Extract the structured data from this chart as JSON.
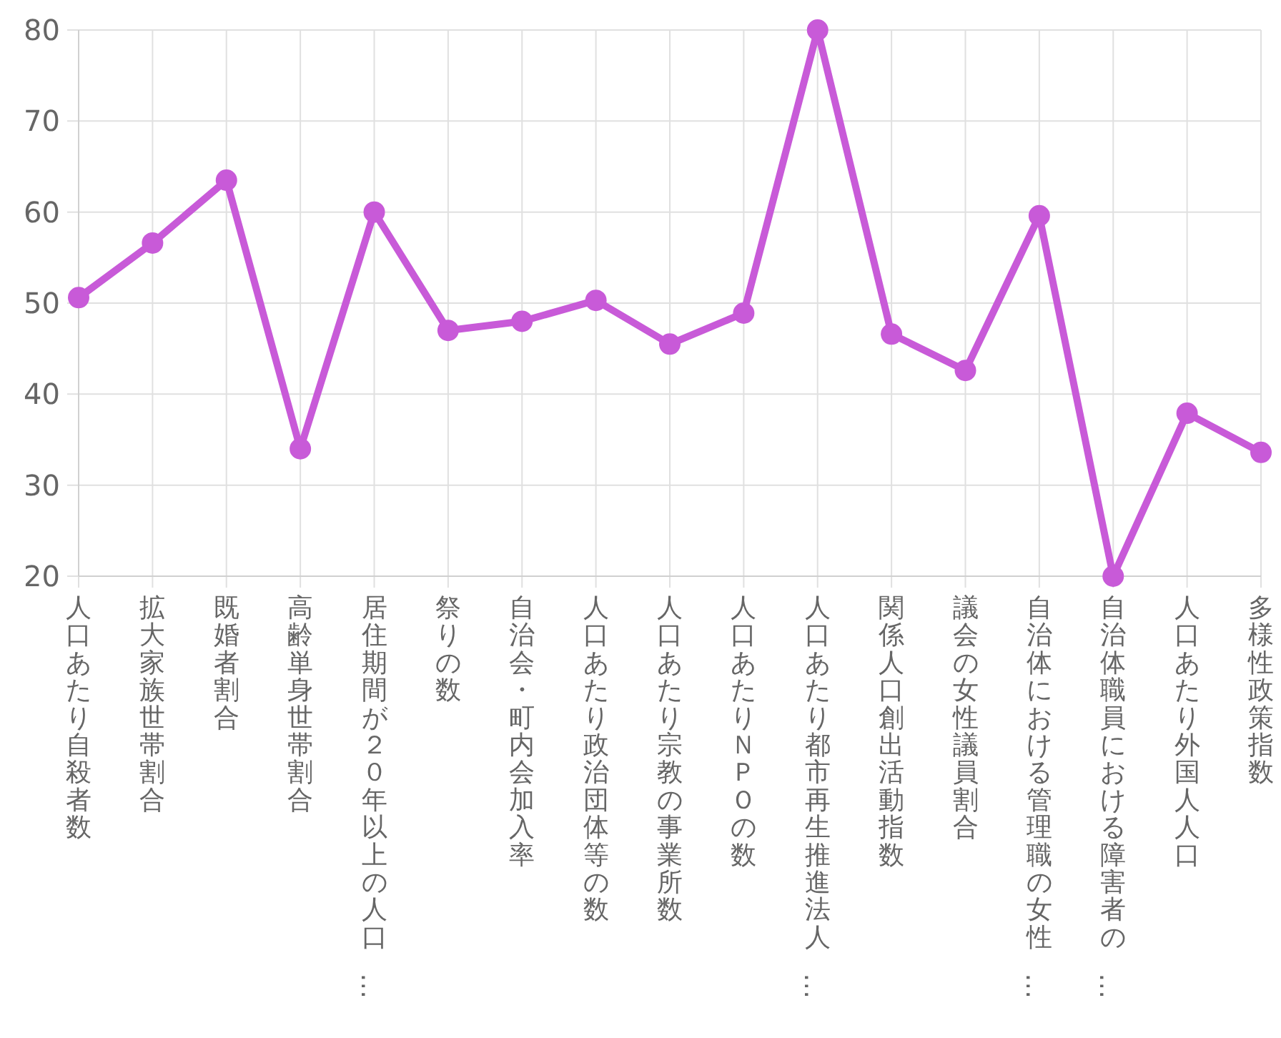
{
  "chart_data": {
    "type": "line",
    "categories": [
      "人口あたり自殺者数",
      "拡大家族世帯割合",
      "既婚者割合",
      "高齢単身世帯割合",
      "居住期間が２０年以上の人口…",
      "祭りの数",
      "自治会・町内会加入率",
      "人口あたり政治団体等の数",
      "人口あたり宗教の事業所数",
      "人口あたりＮＰＯの数",
      "人口あたり都市再生推進法人…",
      "関係人口創出活動指数",
      "議会の女性議員割合",
      "自治体における管理職の女性…",
      "自治体職員における障害者の…",
      "人口あたり外国人人口",
      "多様性政策指数"
    ],
    "series": [
      {
        "color": "#c85ad8",
        "values": [
          50.6,
          56.6,
          63.5,
          34,
          60,
          47,
          48,
          50.3,
          45.5,
          48.9,
          80,
          46.6,
          42.6,
          59.6,
          20,
          37.9,
          33.6
        ]
      }
    ],
    "ylim": [
      20,
      80
    ],
    "yticks": [
      20,
      30,
      40,
      50,
      60,
      70,
      80
    ],
    "grid": true,
    "marker": "circle",
    "line_style": "solid"
  }
}
